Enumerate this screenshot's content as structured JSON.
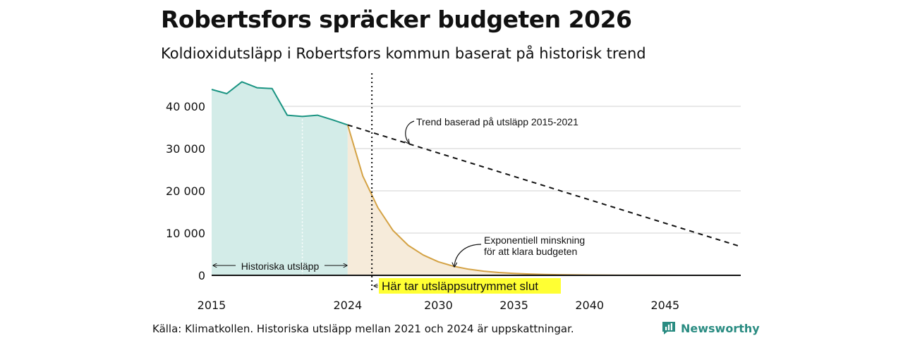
{
  "chart_data": {
    "type": "area",
    "title": "Robertsfors spräcker budgeten 2026",
    "subtitle": "Koldioxidutsläpp i Robertsfors kommun baserat på historisk trend",
    "xlim": [
      2015,
      2050
    ],
    "ylim": [
      0,
      50000
    ],
    "y_ticks": [
      {
        "value": 0,
        "label": "0"
      },
      {
        "value": 10000,
        "label": "10 000"
      },
      {
        "value": 20000,
        "label": "20 000"
      },
      {
        "value": 30000,
        "label": "30 000"
      },
      {
        "value": 40000,
        "label": "40 000"
      }
    ],
    "x_ticks": [
      {
        "value": 2015,
        "label": "2015"
      },
      {
        "value": 2024,
        "label": "2024"
      },
      {
        "value": 2030,
        "label": "2030"
      },
      {
        "value": 2035,
        "label": "2035"
      },
      {
        "value": 2040,
        "label": "2040"
      },
      {
        "value": 2045,
        "label": "2045"
      }
    ],
    "series": [
      {
        "name": "Historiska utsläpp",
        "color": "#1a9482",
        "fill": "#d3ece8",
        "x": [
          2015,
          2016,
          2017,
          2018,
          2019,
          2020,
          2021,
          2022,
          2023,
          2024
        ],
        "y": [
          44000,
          43000,
          45800,
          44400,
          44200,
          37900,
          37600,
          37900,
          36800,
          35600
        ]
      },
      {
        "name": "Exponentiell minskning",
        "color": "#d4a244",
        "fill": "#f6ebda",
        "x": [
          2024,
          2025,
          2026,
          2027,
          2028,
          2029,
          2030,
          2031,
          2032,
          2033,
          2034,
          2035,
          2036,
          2037,
          2038,
          2039,
          2040,
          2042,
          2044,
          2046,
          2048,
          2050
        ],
        "y": [
          35600,
          23500,
          16000,
          10600,
          7100,
          4800,
          3200,
          2150,
          1450,
          980,
          660,
          450,
          310,
          210,
          140,
          95,
          65,
          30,
          14,
          6,
          3,
          1
        ]
      },
      {
        "name": "Trend",
        "style": "dashed",
        "color": "#111111",
        "x": [
          2024,
          2050
        ],
        "y": [
          35600,
          6800
        ]
      }
    ],
    "marker_year": 2025.6,
    "history_divider_year": 2021,
    "annotations": {
      "trend": "Trend baserad på utsläpp 2015-2021",
      "exp_line1": "Exponentiell minskning",
      "exp_line2": "för att klara budgeten",
      "historic": "Historiska utsläpp",
      "budget_end": "Här tar utsläppsutrymmet slut"
    }
  },
  "source": "Källa: Klimatkollen. Historiska utsläpp mellan 2021 och 2024 är uppskattningar.",
  "brand": {
    "name": "Newsworthy",
    "color": "#2a8c82",
    "icon": "bar-chart-icon"
  }
}
